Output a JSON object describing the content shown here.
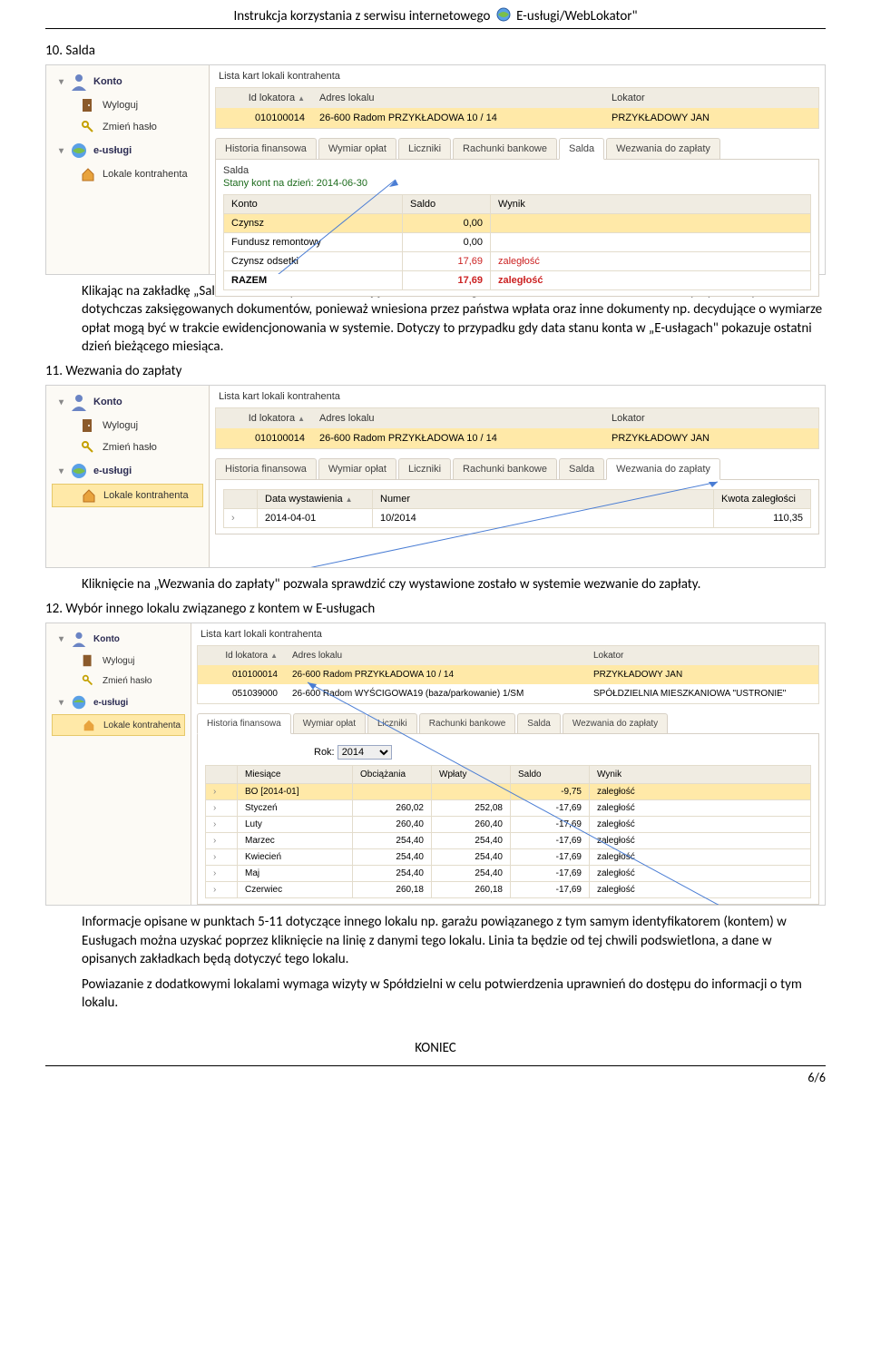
{
  "doc": {
    "header_text_a": "Instrukcja korzystania z serwisu internetowego",
    "header_text_b": "E-usługi/WebLokator\"",
    "page_num": "6/6",
    "koniec": "KONIEC"
  },
  "s10": {
    "heading": "10. Salda",
    "para": "Klikając na zakładkę „Salda\" można uzyskać informację o stane konta wg stanu na dzień z zastrzeżeniem, że dotyczy to wszystkich dotychczas zaksięgowanych dokumentów, ponieważ wniesiona przez państwa wpłata oraz inne dokumenty np. decydujące o wymiarze opłat mogą być w trakcie ewidencjonowania w systemie. Dotyczy to przypadku gdy data stanu konta w „E-usłagach\" pokazuje ostatni dzień bieżącego miesiąca."
  },
  "s11": {
    "heading": "11. Wezwania do zapłaty",
    "para": "Kliknięcie na „Wezwania do zapłaty\" pozwala sprawdzić czy wystawione zostało w systemie wezwanie do zapłaty."
  },
  "s12": {
    "heading": "12. Wybór innego lokalu związanego z kontem w E-usługach",
    "para1": "Informacje opisane w punktach 5-11 dotyczące innego lokalu np. garażu powiązanego z tym samym identyfikatorem (kontem) w Eusługach można uzyskać poprzez kliknięcie na linię z danymi tego lokalu. Linia ta będzie od tej chwili podswietlona, a dane w opisanych zakładkach będą dotyczyć tego lokalu.",
    "para2": "Powiazanie z dodatkowymi lokalami wymaga wizyty w Spółdzielni w celu potwierdzenia uprawnień do dostępu do informacji o tym lokalu."
  },
  "nav": {
    "konto": "Konto",
    "wyloguj": "Wyloguj",
    "zmien_haslo": "Zmień hasło",
    "euslugi": "e-usługi",
    "lokale": "Lokale kontrahenta"
  },
  "content": {
    "list_title": "Lista kart lokali kontrahenta",
    "hdr_id": "Id lokatora",
    "hdr_addr": "Adres lokalu",
    "hdr_lok": "Lokator",
    "row1_id": "010100014",
    "row1_addr": "26-600 Radom PRZYKŁADOWA 10 / 14",
    "row1_lok": "PRZYKŁADOWY JAN",
    "row2_id": "051039000",
    "row2_addr": "26-600 Radom WYŚCIGOWA19 (baza/parkowanie) 1/SM",
    "row2_lok": "SPÓŁDZIELNIA MIESZKANIOWA \"USTRONIE\""
  },
  "tabs": {
    "hist": "Historia finansowa",
    "wymiar": "Wymiar opłat",
    "liczniki": "Liczniki",
    "rachunki": "Rachunki bankowe",
    "salda": "Salda",
    "wezwania": "Wezwania do zapłaty"
  },
  "salda_panel": {
    "title": "Salda",
    "subtitle": "Stany kont na dzień: 2014-06-30",
    "hdr_konto": "Konto",
    "hdr_saldo": "Saldo",
    "hdr_wynik": "Wynik",
    "rows": [
      {
        "k": "Czynsz",
        "s": "0,00",
        "w": "",
        "hl": true,
        "red": false
      },
      {
        "k": "Fundusz remontowy",
        "s": "0,00",
        "w": "",
        "hl": false,
        "red": false
      },
      {
        "k": "Czynsz odsetki",
        "s": "17,69",
        "w": "zaległość",
        "hl": false,
        "red": true
      },
      {
        "k": "RAZEM",
        "s": "17,69",
        "w": "zaległość",
        "hl": false,
        "red": true,
        "bold": true
      }
    ]
  },
  "wez_panel": {
    "hdr_data": "Data wystawienia",
    "hdr_numer": "Numer",
    "hdr_kwota": "Kwota zaległości",
    "row_data": "2014-04-01",
    "row_numer": "10/2014",
    "row_kwota": "110,35"
  },
  "fin_panel": {
    "rok_label": "Rok:",
    "rok_value": "2014",
    "hdr_mies": "Miesiące",
    "hdr_obc": "Obciążania",
    "hdr_wpl": "Wpłaty",
    "hdr_saldo": "Saldo",
    "hdr_wynik": "Wynik",
    "rows": [
      {
        "m": "BO [2014-01]",
        "o": "",
        "w": "",
        "s": "-9,75",
        "wy": "zaległość",
        "hl": true
      },
      {
        "m": "Styczeń",
        "o": "260,02",
        "w": "252,08",
        "s": "-17,69",
        "wy": "zaległość"
      },
      {
        "m": "Luty",
        "o": "260,40",
        "w": "260,40",
        "s": "-17,69",
        "wy": "zaległość"
      },
      {
        "m": "Marzec",
        "o": "254,40",
        "w": "254,40",
        "s": "-17,69",
        "wy": "zaległość"
      },
      {
        "m": "Kwiecień",
        "o": "254,40",
        "w": "254,40",
        "s": "-17,69",
        "wy": "zaległość"
      },
      {
        "m": "Maj",
        "o": "254,40",
        "w": "254,40",
        "s": "-17,69",
        "wy": "zaległość"
      },
      {
        "m": "Czerwiec",
        "o": "260,18",
        "w": "260,18",
        "s": "-17,69",
        "wy": "zaległość"
      }
    ]
  },
  "colors": {
    "highlight": "#ffe9a8",
    "header_bg": "#f0ece2",
    "border": "#e3dccc",
    "green_text": "#1c6b1c",
    "red_text": "#c22"
  }
}
